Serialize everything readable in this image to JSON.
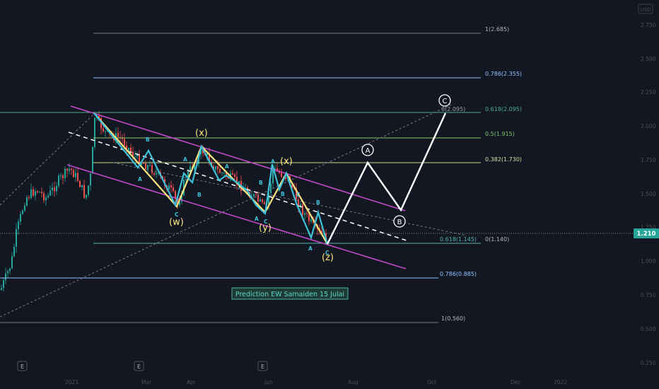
{
  "chart_data": {
    "type": "candlestick",
    "title": "Prediction EW Samaiden 15 Julai",
    "current_price": "1.210",
    "y_ticks": [
      "2.750",
      "2.500",
      "2.250",
      "2.000",
      "1.750",
      "1.500",
      "1.250",
      "1.000",
      "0.750",
      "0.500",
      "0.250"
    ],
    "x_ticks": [
      "2021",
      "Mar",
      "Apr",
      "Jun",
      "Aug",
      "Oct",
      "Dec",
      "2022"
    ],
    "event_markers": [
      "E",
      "E",
      "E"
    ],
    "fib_levels": [
      {
        "label": "1(2.685)",
        "color": "#787b86"
      },
      {
        "label": "0.786(2.355)",
        "color": "#8ec3ff"
      },
      {
        "label": "0.618(2.095)",
        "color": "#4fae8c"
      },
      {
        "label": "0.5(1.915)",
        "color": "#84c56e"
      },
      {
        "label": "0.382(1.730)",
        "color": "#b8d98e"
      },
      {
        "label": "0(1.140)",
        "color": "#9aa0a6"
      },
      {
        "label": "0.618(1.145)",
        "color": "#4fb6a8"
      },
      {
        "label": "0.786(0.885)",
        "color": "#8ec3ff"
      },
      {
        "label": "1(0.560)",
        "color": "#9aa0a6"
      },
      {
        "label": "0(2.095)",
        "color": "#9aa0a6"
      }
    ],
    "wave_labels": [
      "(w)",
      "(x)",
      "(y)",
      "(x)",
      "(z)"
    ],
    "sub_labels": [
      "A",
      "B",
      "C"
    ],
    "projection_labels": [
      "A",
      "B",
      "C"
    ],
    "colors": {
      "up": "#26a69a",
      "down": "#ef5350",
      "channel": "#c04ac7",
      "wxy": "#ffe57f",
      "abc": "#3ec1d8",
      "projection": "#ffffff",
      "price_badge": "#26a69a"
    }
  }
}
